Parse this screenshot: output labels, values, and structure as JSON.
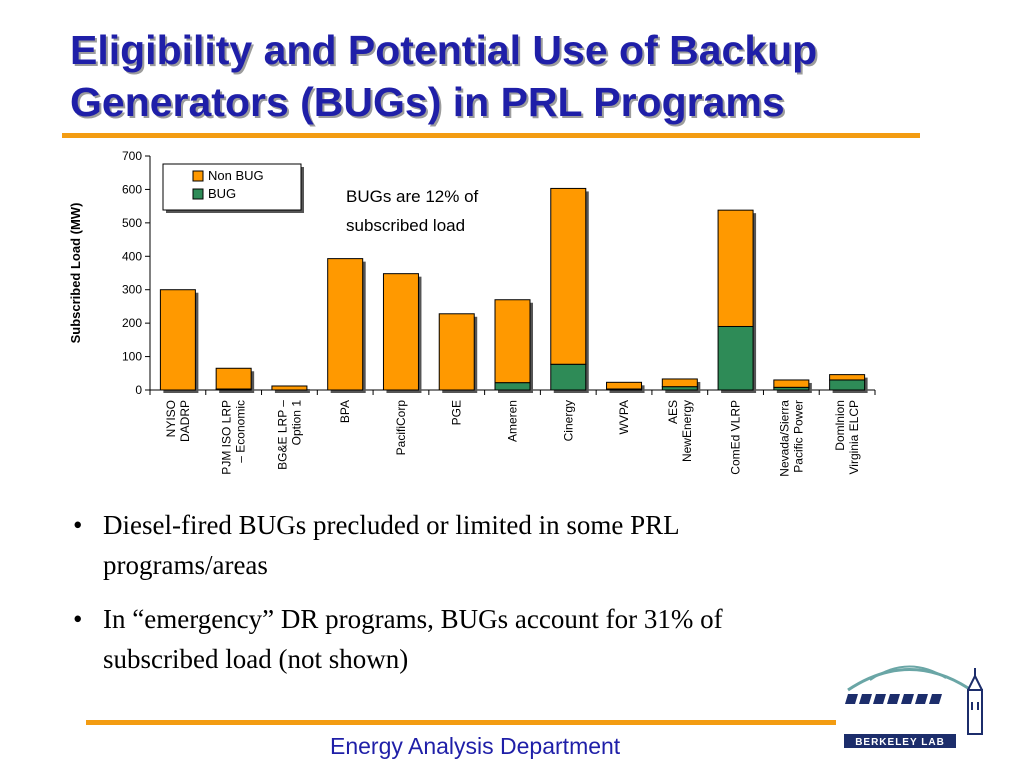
{
  "slide": {
    "title": "Eligibility and Potential Use of Backup Generators (BUGs) in PRL Programs",
    "bullets": [
      "Diesel-fired BUGs precluded or limited in some PRL programs/areas",
      "In “emergency” DR programs, BUGs account for 31% of subscribed load (not shown)"
    ],
    "footer": "Energy Analysis Department",
    "logo_text": "BERKELEY LAB",
    "accent_color": "#f39c12",
    "title_color": "#1f1fa8"
  },
  "chart_data": {
    "type": "bar",
    "stacked": true,
    "categories": [
      "NYISO DADRP",
      "PJM ISO LRP – Economic",
      "BG&E LRP – Option 1",
      "BPA",
      "PacifiCorp",
      "PGE",
      "Ameren",
      "Cinergy",
      "WVPA",
      "AES NewEnergy",
      "ComEd VLRP",
      "Nevada/Sierra Pacific Power",
      "Dominion Virginia ELCP"
    ],
    "category_labels": [
      [
        "NYISO",
        "DADRP"
      ],
      [
        "PJM ISO LRP",
        "– Economic"
      ],
      [
        "BG&E LRP –",
        "Option 1"
      ],
      [
        "BPA"
      ],
      [
        "PacifiCorp"
      ],
      [
        "PGE"
      ],
      [
        "Ameren"
      ],
      [
        "Cinergy"
      ],
      [
        "WVPA"
      ],
      [
        "AES",
        "NewEnergy"
      ],
      [
        "ComEd VLRP"
      ],
      [
        "Nevada/Sierra",
        "Pacific Power"
      ],
      [
        "Domlnion",
        "Virginia ELCP"
      ]
    ],
    "series": [
      {
        "name": "BUG",
        "color": "#2e8b57",
        "values": [
          0,
          3,
          0,
          0,
          0,
          0,
          22,
          77,
          3,
          10,
          190,
          8,
          30
        ]
      },
      {
        "name": "Non BUG",
        "color": "#ff9900",
        "values": [
          300,
          62,
          12,
          393,
          348,
          228,
          248,
          526,
          20,
          23,
          348,
          22,
          16
        ]
      }
    ],
    "legend_order": [
      "Non BUG",
      "BUG"
    ],
    "legend_position": "top-left",
    "ylabel": "Subscribed Load (MW)",
    "ylim": [
      0,
      700
    ],
    "yticks": [
      0,
      100,
      200,
      300,
      400,
      500,
      600,
      700
    ],
    "annotation": "BUGs are 12% of subscribed load",
    "grid": false
  }
}
